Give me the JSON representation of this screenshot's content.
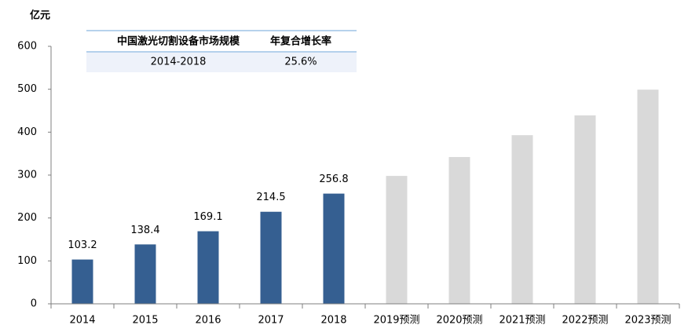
{
  "chart_data": {
    "type": "bar",
    "y_unit": "亿元",
    "categories": [
      "2014",
      "2015",
      "2016",
      "2017",
      "2018",
      "2019预测",
      "2020预测",
      "2021预测",
      "2022预测",
      "2023预测"
    ],
    "values": [
      103.2,
      138.4,
      169.1,
      214.5,
      256.8,
      298,
      342,
      393,
      439,
      499
    ],
    "value_labels": [
      "103.2",
      "138.4",
      "169.1",
      "214.5",
      "256.8",
      null,
      null,
      null,
      null,
      null
    ],
    "colors": [
      "#355f91",
      "#355f91",
      "#355f91",
      "#355f91",
      "#355f91",
      "#d9d9d9",
      "#d9d9d9",
      "#d9d9d9",
      "#d9d9d9",
      "#d9d9d9"
    ],
    "ylim": [
      0,
      600
    ],
    "yticks": [
      0,
      100,
      200,
      300,
      400,
      500,
      600
    ],
    "grid": false
  },
  "table": {
    "header": [
      "中国激光切割设备市场规模",
      "年复合增长率"
    ],
    "rows": [
      [
        "2014-2018",
        "25.6%"
      ]
    ]
  }
}
